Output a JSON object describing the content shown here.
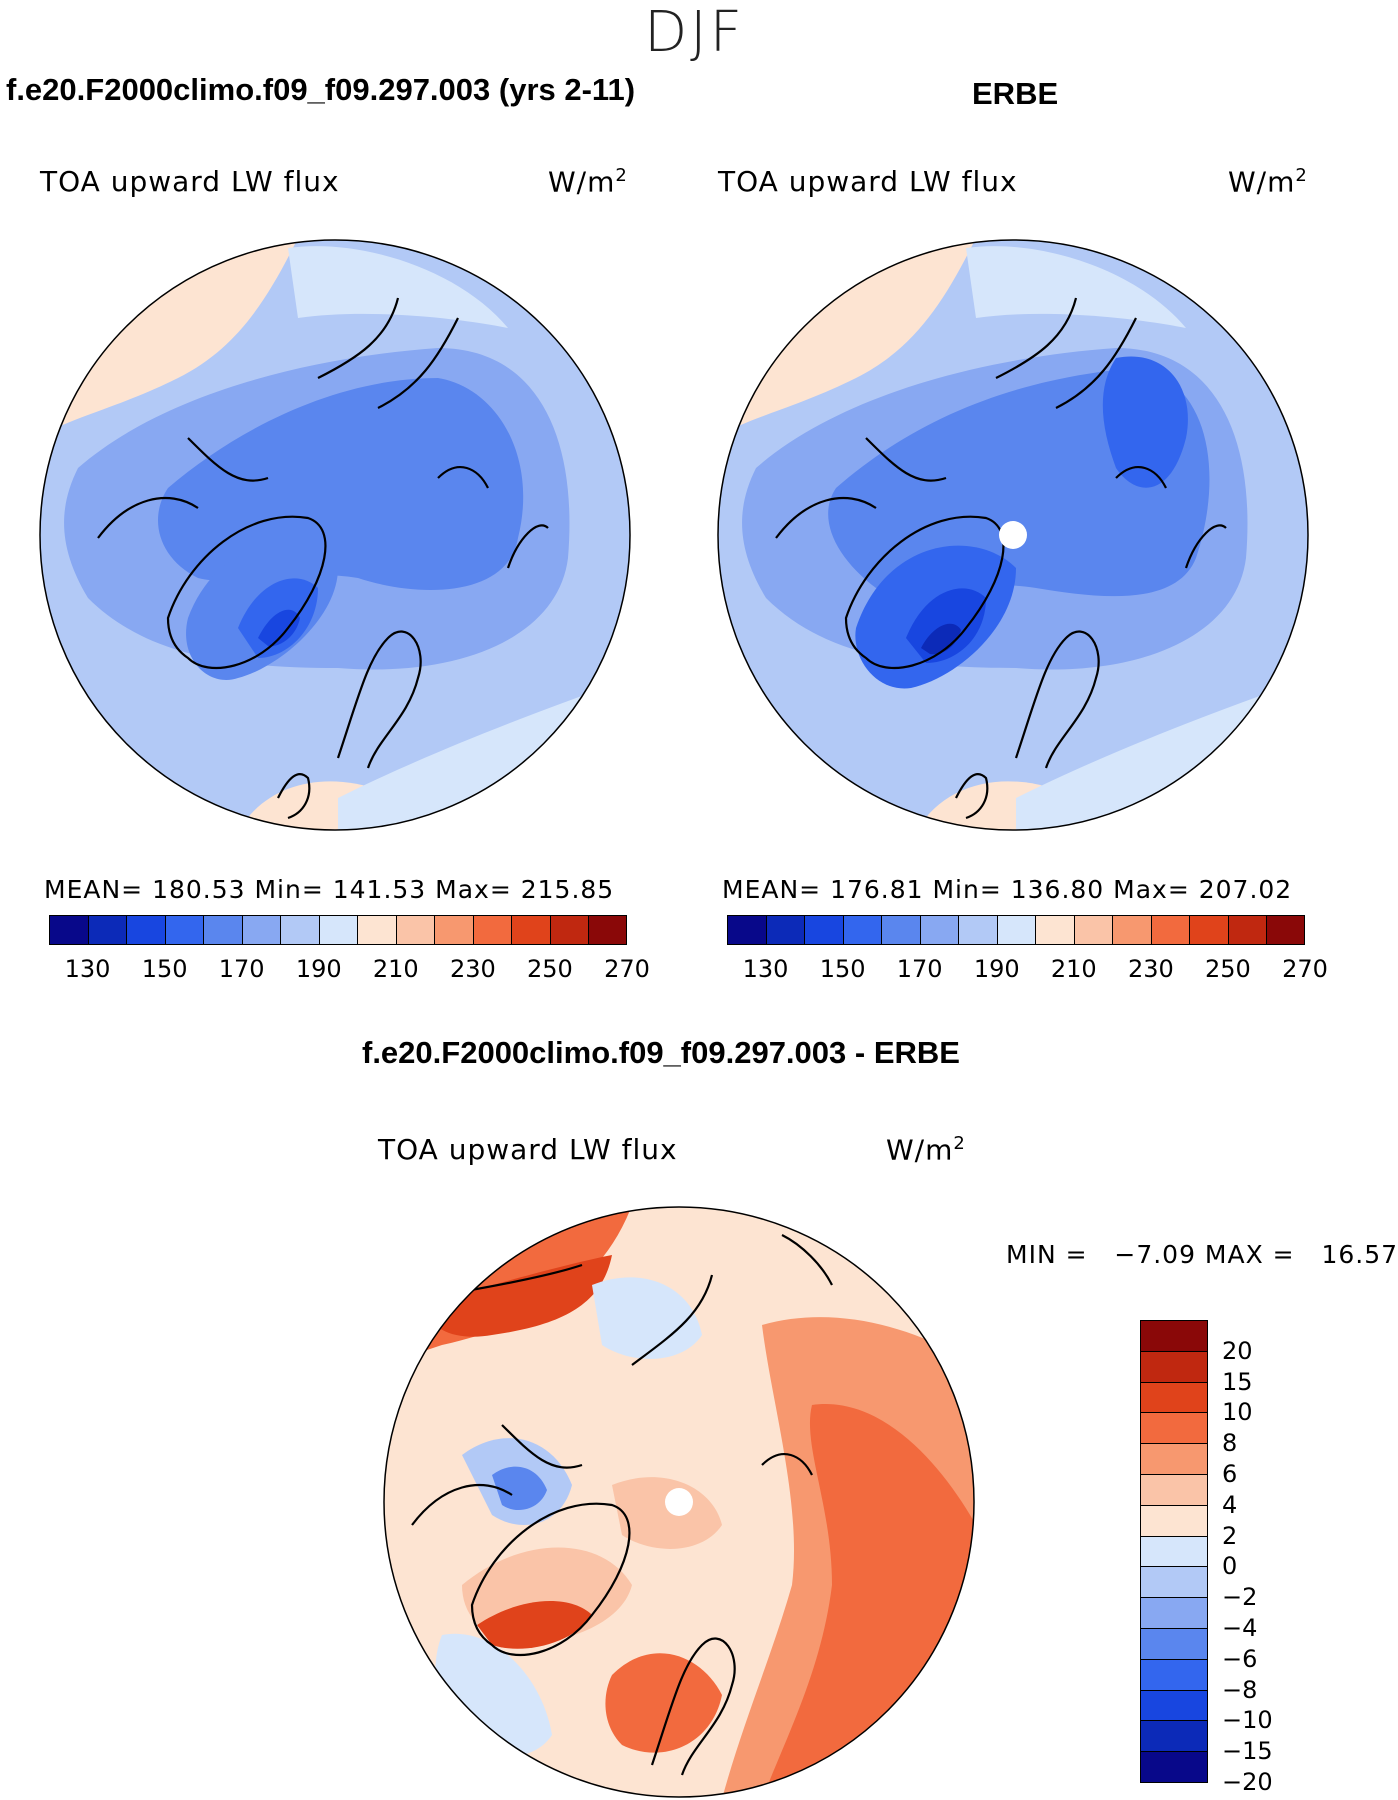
{
  "header": {
    "season": "DJF"
  },
  "top_left": {
    "title": "f.e20.F2000climo.f09_f09.297.003 (yrs 2-11)",
    "variable": "TOA upward LW flux",
    "units_base": "W/m",
    "units_exp": "2",
    "stats": "MEAN= 180.53   Min= 141.53   Max= 215.85"
  },
  "top_right": {
    "title": "ERBE",
    "variable": "TOA upward LW flux",
    "units_base": "W/m",
    "units_exp": "2",
    "stats": "MEAN= 176.81   Min= 136.80   Max= 207.02"
  },
  "bottom": {
    "title": "f.e20.F2000climo.f09_f09.297.003 - ERBE",
    "variable": "TOA upward LW flux",
    "units_base": "W/m",
    "units_exp": "2",
    "minmax": "MIN =   −7.09 MAX =   16.57"
  },
  "abs_colorbar": {
    "colors": [
      "#08088a",
      "#0c2ab8",
      "#1846e0",
      "#3366ee",
      "#5a86ee",
      "#88a8f2",
      "#b2c9f6",
      "#d6e6fb",
      "#fde4d2",
      "#fac4a8",
      "#f7986f",
      "#f26a3e",
      "#e0431b",
      "#c02810",
      "#8a0808"
    ],
    "tick_labels": [
      "130",
      "150",
      "170",
      "190",
      "210",
      "230",
      "250",
      "270"
    ]
  },
  "diff_colorbar": {
    "colors": [
      "#8a0808",
      "#c02810",
      "#e0431b",
      "#f26a3e",
      "#f7986f",
      "#fac4a8",
      "#fde4d2",
      "#d6e6fb",
      "#b2c9f6",
      "#88a8f2",
      "#5a86ee",
      "#3366ee",
      "#1846e0",
      "#0c2ab8",
      "#08088a"
    ],
    "labels": [
      "20",
      "15",
      "10",
      "8",
      "6",
      "4",
      "2",
      "0",
      "−2",
      "−4",
      "−6",
      "−8",
      "−10",
      "−15",
      "−20"
    ]
  }
}
